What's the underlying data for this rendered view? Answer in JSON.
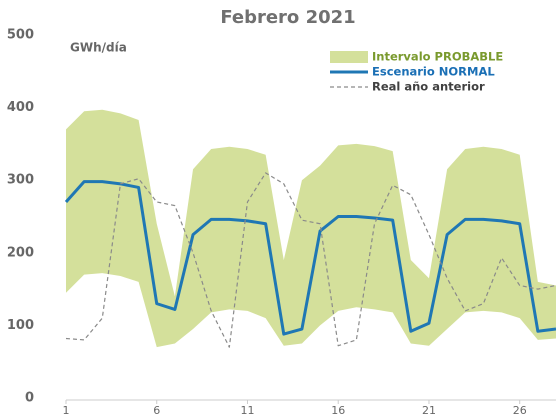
{
  "chart_data": {
    "type": "line",
    "title": "Febrero 2021",
    "y_label": "GWh/día",
    "x": [
      1,
      2,
      3,
      4,
      5,
      6,
      7,
      8,
      9,
      10,
      11,
      12,
      13,
      14,
      15,
      16,
      17,
      18,
      19,
      20,
      21,
      22,
      23,
      24,
      25,
      26,
      27,
      28
    ],
    "xlim": [
      1,
      28
    ],
    "xticks": [
      1,
      6,
      11,
      16,
      21,
      26
    ],
    "ylim": [
      0,
      500
    ],
    "yticks": [
      0,
      100,
      200,
      300,
      400,
      500
    ],
    "grid": false,
    "legend": "top-right",
    "band": {
      "name": "Intervalo PROBABLE",
      "color": "#d4e09b",
      "text_color": "#7a9a2e",
      "upper": [
        370,
        395,
        397,
        392,
        383,
        240,
        140,
        315,
        343,
        346,
        343,
        335,
        190,
        300,
        320,
        348,
        350,
        347,
        340,
        190,
        165,
        315,
        343,
        346,
        343,
        335,
        160,
        155
      ],
      "lower": [
        145,
        170,
        172,
        168,
        160,
        70,
        75,
        95,
        118,
        122,
        120,
        110,
        72,
        75,
        100,
        120,
        125,
        122,
        118,
        75,
        72,
        95,
        118,
        120,
        118,
        110,
        80,
        82
      ]
    },
    "series": [
      {
        "name": "Escenario NORMAL",
        "color": "#1f77b4",
        "text_color": "#1a6fb5",
        "dashed": false,
        "values": [
          270,
          298,
          298,
          295,
          290,
          130,
          122,
          225,
          246,
          246,
          244,
          240,
          88,
          95,
          230,
          250,
          250,
          248,
          245,
          92,
          103,
          225,
          246,
          246,
          244,
          240,
          92,
          95
        ]
      },
      {
        "name": "Real año anterior",
        "color": "#8a8a8a",
        "text_color": "#404040",
        "dashed": true,
        "values": [
          82,
          80,
          110,
          295,
          302,
          270,
          265,
          200,
          120,
          70,
          270,
          310,
          295,
          245,
          240,
          72,
          80,
          240,
          293,
          280,
          225,
          165,
          120,
          130,
          193,
          155,
          150,
          155
        ]
      }
    ]
  }
}
